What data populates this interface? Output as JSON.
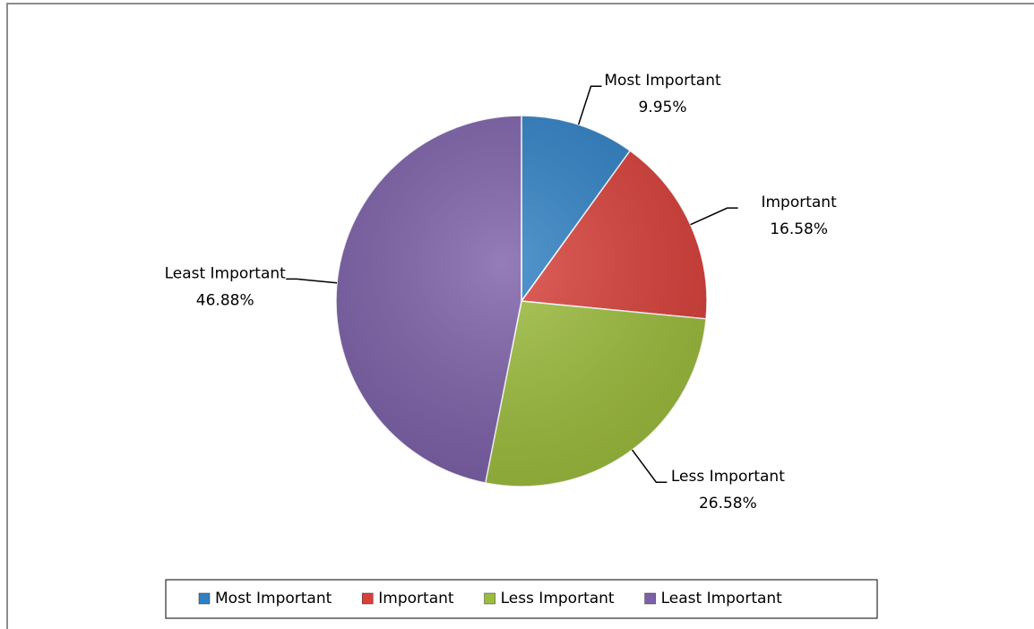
{
  "chart_data": {
    "type": "pie",
    "categories": [
      "Most Important",
      "Important",
      "Less Important",
      "Least Important"
    ],
    "values": [
      9.95,
      16.58,
      26.58,
      46.88
    ],
    "value_labels": [
      "9.95%",
      "16.58%",
      "26.58%",
      "46.88%"
    ],
    "colors": [
      "#2f80c4",
      "#d8403a",
      "#9cbc3c",
      "#7c60a8"
    ],
    "legend": "bottom"
  }
}
